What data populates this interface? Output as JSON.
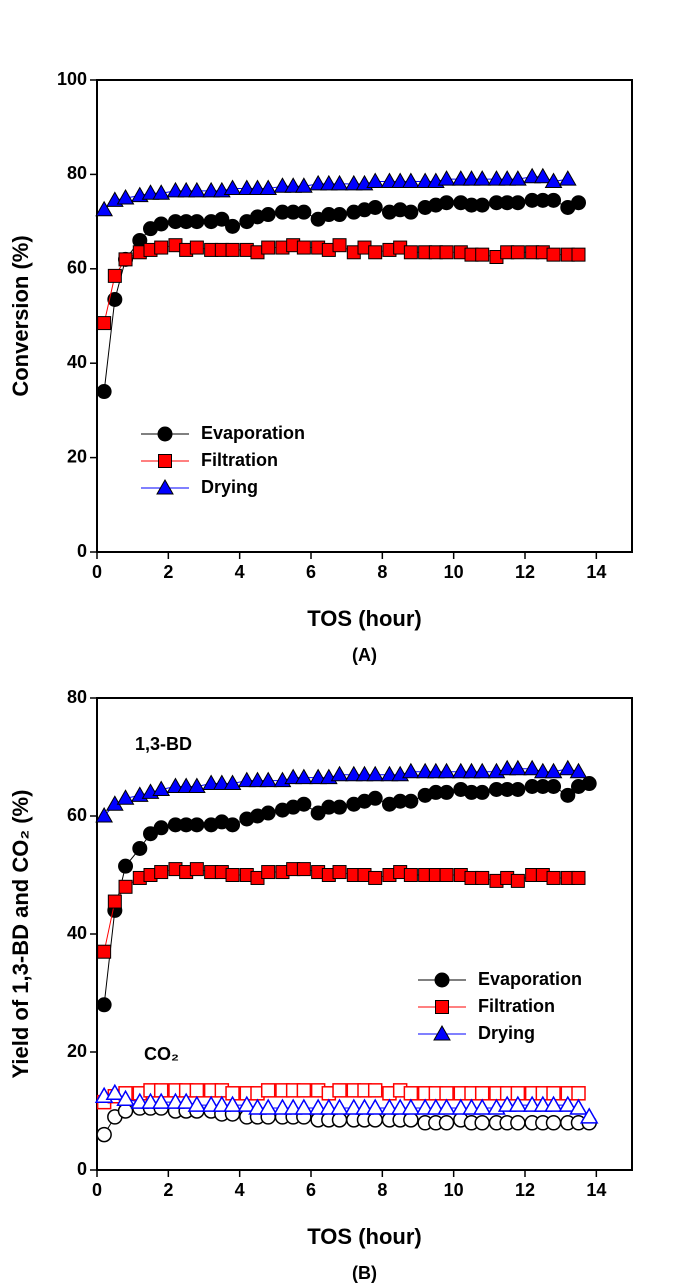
{
  "chart_data": [
    {
      "type": "line",
      "caption": "(A)",
      "xlabel": "TOS (hour)",
      "ylabel": "Conversion (%)",
      "legend": "lower left",
      "x": [
        0.2,
        0.5,
        0.8,
        1.2,
        1.5,
        1.8,
        2.2,
        2.5,
        2.8,
        3.2,
        3.5,
        3.8,
        4.2,
        4.5,
        4.8,
        5.2,
        5.5,
        5.8,
        6.2,
        6.5,
        6.8,
        7.2,
        7.5,
        7.8,
        8.2,
        8.5,
        8.8,
        9.2,
        9.5,
        9.8,
        10.2,
        10.5,
        10.8,
        11.2,
        11.5,
        11.8,
        12.2,
        12.5,
        12.8,
        13.2,
        13.5
      ],
      "xlim": [
        0,
        15
      ],
      "xticks": [
        0,
        2,
        4,
        6,
        8,
        10,
        12,
        14
      ],
      "ylim": [
        0,
        100
      ],
      "yticks": [
        0,
        20,
        40,
        60,
        80,
        100
      ],
      "series": [
        {
          "name": "Evaporation",
          "color": "#000000",
          "marker": "circle",
          "values": [
            34,
            53.5,
            62,
            66,
            68.5,
            69.5,
            70,
            70,
            70,
            70,
            70.5,
            69,
            70,
            71,
            71.5,
            72,
            72,
            72,
            70.5,
            71.5,
            71.5,
            72,
            72.5,
            73,
            72,
            72.5,
            72,
            73,
            73.5,
            74,
            74,
            73.5,
            73.5,
            74,
            74,
            74,
            74.5,
            74.5,
            74.5,
            73,
            74
          ]
        },
        {
          "name": "Filtration",
          "color": "#ff0000",
          "marker": "square",
          "values": [
            48.5,
            58.5,
            62,
            63.5,
            64,
            64.5,
            65,
            64,
            64.5,
            64,
            64,
            64,
            64,
            63.5,
            64.5,
            64.5,
            65,
            64.5,
            64.5,
            64,
            65,
            63.5,
            64.5,
            63.5,
            64,
            64.5,
            63.5,
            63.5,
            63.5,
            63.5,
            63.5,
            63,
            63,
            62.5,
            63.5,
            63.5,
            63.5,
            63.5,
            63,
            63,
            63
          ]
        },
        {
          "name": "Drying",
          "color": "#0000ff",
          "marker": "triangle",
          "values": [
            72.5,
            74.5,
            75,
            75.5,
            76,
            76,
            76.5,
            76.5,
            76.5,
            76.5,
            76.5,
            77,
            77,
            77,
            77,
            77.5,
            77.5,
            77.5,
            78,
            78,
            78,
            78,
            78,
            78.5,
            78.5,
            78.5,
            78.5,
            78.5,
            78.5,
            79,
            79,
            79,
            79,
            79,
            79,
            79,
            79.5,
            79.5,
            78.5,
            79,
            null
          ]
        }
      ]
    },
    {
      "type": "line",
      "caption": "(B)",
      "xlabel": "TOS (hour)",
      "ylabel": "Yield of 1,3-BD and CO₂ (%)",
      "legend": "lower right",
      "annotations": [
        "1,3-BD",
        "CO₂"
      ],
      "x": [
        0.2,
        0.5,
        0.8,
        1.2,
        1.5,
        1.8,
        2.2,
        2.5,
        2.8,
        3.2,
        3.5,
        3.8,
        4.2,
        4.5,
        4.8,
        5.2,
        5.5,
        5.8,
        6.2,
        6.5,
        6.8,
        7.2,
        7.5,
        7.8,
        8.2,
        8.5,
        8.8,
        9.2,
        9.5,
        9.8,
        10.2,
        10.5,
        10.8,
        11.2,
        11.5,
        11.8,
        12.2,
        12.5,
        12.8,
        13.2,
        13.5,
        13.8
      ],
      "xlim": [
        0,
        15
      ],
      "xticks": [
        0,
        2,
        4,
        6,
        8,
        10,
        12,
        14
      ],
      "ylim": [
        0,
        80
      ],
      "yticks": [
        0,
        20,
        40,
        60,
        80
      ],
      "series": [
        {
          "name": "Evaporation",
          "color": "#000000",
          "marker": "circle",
          "values": [
            28,
            44,
            51.5,
            54.5,
            57,
            58,
            58.5,
            58.5,
            58.5,
            58.5,
            59,
            58.5,
            59.5,
            60,
            60.5,
            61,
            61.5,
            62,
            60.5,
            61.5,
            61.5,
            62,
            62.5,
            63,
            62,
            62.5,
            62.5,
            63.5,
            64,
            64,
            64.5,
            64,
            64,
            64.5,
            64.5,
            64.5,
            65,
            65,
            65,
            63.5,
            65,
            65.5
          ],
          "co2_values": [
            6,
            9,
            10,
            10.5,
            10.5,
            10.5,
            10,
            10,
            10,
            10,
            9.5,
            9.5,
            9,
            9,
            9,
            9,
            9,
            9,
            8.5,
            8.5,
            8.5,
            8.5,
            8.5,
            8.5,
            8.5,
            8.5,
            8.5,
            8,
            8,
            8,
            8.5,
            8,
            8,
            8,
            8,
            8,
            8,
            8,
            8,
            8,
            8,
            8
          ]
        },
        {
          "name": "Filtration",
          "color": "#ff0000",
          "marker": "square",
          "values": [
            37,
            45.5,
            48,
            49.5,
            50,
            50.5,
            51,
            50.5,
            51,
            50.5,
            50.5,
            50,
            50,
            49.5,
            50.5,
            50.5,
            51,
            51,
            50.5,
            50,
            50.5,
            50,
            50,
            49.5,
            50,
            50.5,
            50,
            50,
            50,
            50,
            50,
            49.5,
            49.5,
            49,
            49.5,
            49,
            50,
            50,
            49.5,
            49.5,
            49.5,
            null
          ],
          "co2_values": [
            11.5,
            12.5,
            13,
            13,
            13.5,
            13.5,
            13.5,
            13.5,
            13.5,
            13.5,
            13.5,
            13,
            13,
            13,
            13.5,
            13.5,
            13.5,
            13.5,
            13.5,
            13,
            13.5,
            13.5,
            13.5,
            13.5,
            13,
            13.5,
            13,
            13,
            13,
            13,
            13,
            13,
            13,
            13,
            13,
            13,
            13,
            13,
            13,
            13,
            13,
            null
          ]
        },
        {
          "name": "Drying",
          "color": "#0000ff",
          "marker": "triangle",
          "values": [
            60,
            62,
            63,
            63.5,
            64,
            64.5,
            65,
            65,
            65,
            65.5,
            65.5,
            65.5,
            66,
            66,
            66,
            66,
            66.5,
            66.5,
            66.5,
            66.5,
            67,
            67,
            67,
            67,
            67,
            67,
            67.5,
            67.5,
            67.5,
            67.5,
            67.5,
            67.5,
            67.5,
            67.5,
            68,
            68,
            68,
            67.5,
            67.5,
            68,
            67.5,
            null
          ],
          "co2_values": [
            12.5,
            13,
            12,
            11.5,
            11.5,
            11.5,
            11.5,
            11.5,
            11,
            11,
            11,
            11,
            11,
            10.5,
            10.5,
            10.5,
            10.5,
            10.5,
            10.5,
            10.5,
            10.5,
            10.5,
            10.5,
            10.5,
            10.5,
            10.5,
            10.5,
            10.5,
            10.5,
            10.5,
            10.5,
            10.5,
            10.5,
            10.5,
            11,
            11,
            11,
            11,
            11,
            11,
            10.5,
            9
          ]
        }
      ]
    }
  ]
}
